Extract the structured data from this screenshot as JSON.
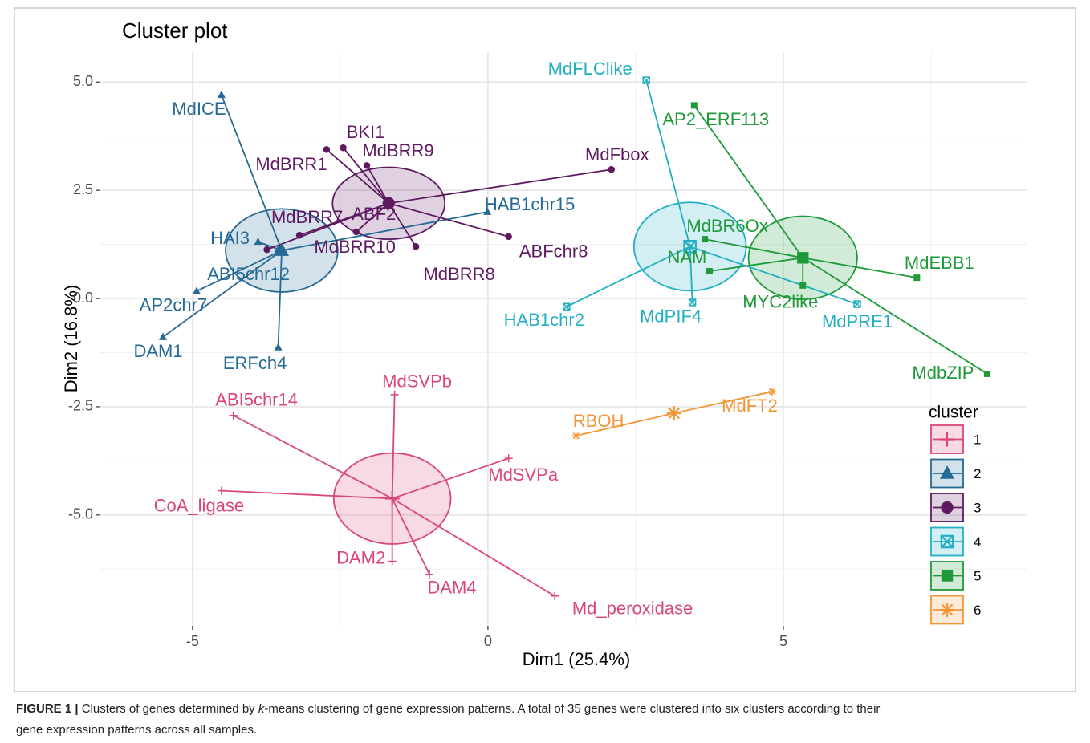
{
  "chart_data": {
    "type": "scatter",
    "title": "Cluster plot",
    "x_label": "Dim1 (25.4%)",
    "y_label": "Dim2 (16.8%)",
    "xlim": [
      -6.56,
      9.13
    ],
    "ylim": [
      -7.56,
      5.69
    ],
    "xticks": [
      -5,
      0,
      5
    ],
    "yticks": [
      {
        "value": 5,
        "label": "5.0"
      },
      {
        "value": 2.5,
        "label": "2.5"
      },
      {
        "value": 0,
        "label": "0.0"
      },
      {
        "value": -2.5,
        "label": "-2.5"
      },
      {
        "value": -5,
        "label": "-5.0"
      }
    ],
    "grid": true,
    "legend_title": "cluster",
    "legend_position": "right",
    "series": [
      {
        "name": "1",
        "color": "#d9467a",
        "shape": "plus",
        "labels": [
          "ABI5chr14",
          "MdSVPb",
          "MdSVPa",
          "CoA_ligase",
          "DAM2",
          "DAM4",
          "Md_peroxidase"
        ],
        "x": [
          -4.31,
          -1.58,
          0.35,
          -4.51,
          -1.62,
          -0.99,
          1.13
        ],
        "y": [
          -2.7,
          -2.22,
          -3.69,
          -4.44,
          -6.07,
          -6.37,
          -6.87
        ],
        "center": [
          -1.62,
          -4.62
        ],
        "ellipse": [
          0.99,
          1.05
        ]
      },
      {
        "name": "2",
        "color": "#256a94",
        "shape": "triangle",
        "labels": [
          "MdICE",
          "HAI3",
          "ABI5chr12",
          "AP2chr7",
          "DAM1",
          "ERFch4",
          "HAB1chr15"
        ],
        "x": [
          -4.51,
          -3.89,
          -3.55,
          -4.93,
          -5.5,
          -3.55,
          -0.01
        ],
        "y": [
          4.7,
          1.31,
          1.13,
          0.17,
          -0.89,
          -1.13,
          2.0
        ],
        "center": [
          -3.49,
          1.11
        ],
        "ellipse": [
          0.95,
          0.96
        ]
      },
      {
        "name": "3",
        "color": "#5e1a60",
        "shape": "circle",
        "labels": [
          "MdBRR1",
          "BKI1",
          "MdBRR9",
          "MdFbox",
          "MdBRR7",
          "ABF2",
          "MdBRR10",
          "MdBRR8",
          "ABFchr8"
        ],
        "x": [
          -2.73,
          -2.45,
          -2.05,
          2.09,
          -3.74,
          -2.23,
          -3.19,
          -1.22,
          0.35
        ],
        "y": [
          3.44,
          3.48,
          3.07,
          2.98,
          1.13,
          1.54,
          1.46,
          1.2,
          1.43
        ],
        "center": [
          -1.68,
          2.2
        ],
        "ellipse": [
          0.95,
          0.83
        ]
      },
      {
        "name": "4",
        "color": "#22afc2",
        "shape": "square-cross",
        "labels": [
          "MdFLClike",
          "HAB1chr2",
          "MdPIF4",
          "MdPRE1"
        ],
        "x": [
          2.68,
          1.33,
          3.46,
          6.25
        ],
        "y": [
          5.04,
          -0.19,
          -0.09,
          -0.13
        ],
        "center": [
          3.42,
          1.2
        ],
        "ellipse": [
          0.95,
          1.02
        ]
      },
      {
        "name": "5",
        "color": "#1e9a3a",
        "shape": "square",
        "labels": [
          "AP2_ERF113",
          "MdBR6Ox",
          "NAM",
          "MYC2like",
          "MdEBB1",
          "MdbZIP"
        ],
        "x": [
          3.49,
          3.67,
          3.75,
          5.33,
          7.26,
          8.45
        ],
        "y": [
          4.46,
          1.37,
          0.63,
          0.3,
          0.48,
          -1.74
        ],
        "center": [
          5.33,
          0.94
        ],
        "ellipse": [
          0.92,
          0.96
        ]
      },
      {
        "name": "6",
        "color": "#f39638",
        "shape": "asterisk",
        "labels": [
          "RBOH",
          "MdFT2"
        ],
        "x": [
          1.49,
          4.81
        ],
        "y": [
          -3.17,
          -2.15
        ],
        "center": [
          3.15,
          -2.65
        ]
      }
    ]
  },
  "caption": {
    "label": "FIGURE 1 |",
    "parts": [
      " Clusters of genes determined by ",
      "k",
      "-means clustering of gene expression patterns. A total of 35 genes were clustered into six clusters according to their",
      "gene expression patterns across all samples."
    ]
  }
}
